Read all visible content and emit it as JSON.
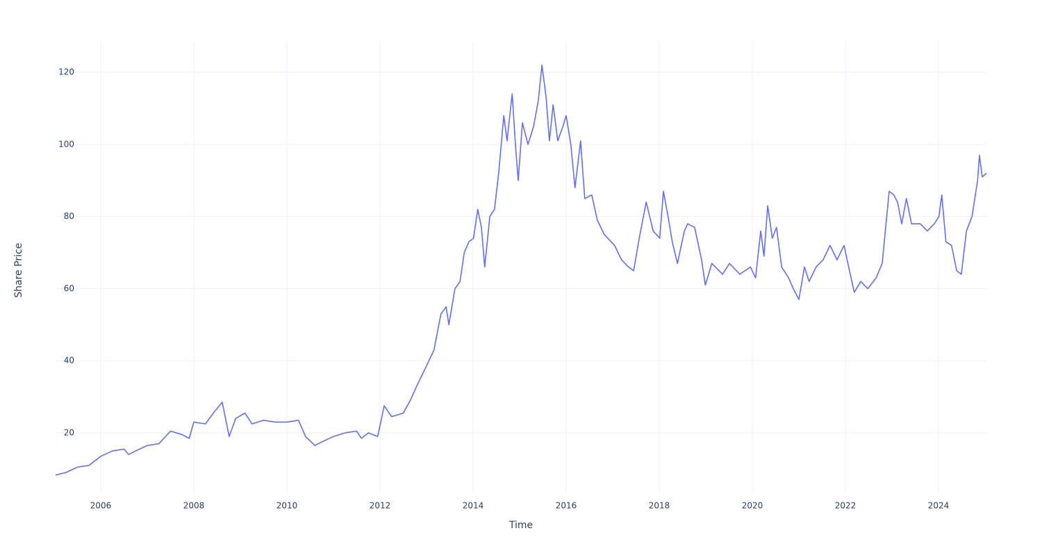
{
  "chart_data": {
    "type": "line",
    "x_label": "Time",
    "y_label": "Share Price",
    "color": "#636efa",
    "grid": true,
    "xlim": [
      2005.03,
      2025.03
    ],
    "ylim": [
      3.2,
      128.5
    ],
    "xticks": [
      2006,
      2008,
      2010,
      2012,
      2014,
      2016,
      2018,
      2020,
      2022,
      2024
    ],
    "yticks": [
      20,
      40,
      60,
      80,
      100,
      120
    ],
    "x": [
      2005.03,
      2005.25,
      2005.5,
      2005.75,
      2006.0,
      2006.25,
      2006.5,
      2006.6,
      2006.75,
      2007.0,
      2007.25,
      2007.5,
      2007.75,
      2007.9,
      2008.0,
      2008.25,
      2008.45,
      2008.61,
      2008.76,
      2008.9,
      2009.1,
      2009.25,
      2009.5,
      2009.75,
      2010.0,
      2010.25,
      2010.4,
      2010.6,
      2010.75,
      2011.0,
      2011.25,
      2011.5,
      2011.6,
      2011.75,
      2011.95,
      2012.09,
      2012.25,
      2012.5,
      2012.65,
      2012.79,
      2012.94,
      2013.16,
      2013.31,
      2013.42,
      2013.48,
      2013.61,
      2013.72,
      2013.81,
      2013.91,
      2014.01,
      2014.1,
      2014.18,
      2014.25,
      2014.36,
      2014.46,
      2014.55,
      2014.66,
      2014.73,
      2014.84,
      2014.91,
      2014.97,
      2015.06,
      2015.18,
      2015.3,
      2015.4,
      2015.48,
      2015.57,
      2015.64,
      2015.72,
      2015.82,
      2015.93,
      2016.0,
      2016.1,
      2016.19,
      2016.31,
      2016.4,
      2016.55,
      2016.67,
      2016.82,
      2017.04,
      2017.19,
      2017.34,
      2017.45,
      2017.57,
      2017.72,
      2017.87,
      2018.01,
      2018.09,
      2018.19,
      2018.28,
      2018.39,
      2018.54,
      2018.61,
      2018.76,
      2018.91,
      2018.99,
      2019.13,
      2019.36,
      2019.51,
      2019.73,
      2019.96,
      2020.07,
      2020.18,
      2020.25,
      2020.33,
      2020.43,
      2020.52,
      2020.63,
      2020.78,
      2020.88,
      2021.0,
      2021.12,
      2021.22,
      2021.37,
      2021.52,
      2021.67,
      2021.82,
      2021.97,
      2022.07,
      2022.19,
      2022.33,
      2022.48,
      2022.66,
      2022.79,
      2022.94,
      2023.04,
      2023.12,
      2023.21,
      2023.31,
      2023.42,
      2023.61,
      2023.76,
      2023.91,
      2024.01,
      2024.07,
      2024.16,
      2024.28,
      2024.39,
      2024.49,
      2024.6,
      2024.72,
      2024.84,
      2024.88,
      2024.94,
      2025.03
    ],
    "values": [
      8.3,
      9,
      10.5,
      11,
      13.5,
      15,
      15.5,
      14,
      15,
      16.5,
      17,
      20.5,
      19.5,
      18.5,
      23,
      22.5,
      26,
      28.5,
      19,
      24,
      25.5,
      22.5,
      23.5,
      23,
      23,
      23.5,
      19,
      16.5,
      17.5,
      19,
      20,
      20.5,
      18.5,
      20,
      19,
      27.5,
      24.5,
      25.5,
      29,
      33,
      37,
      43,
      53,
      55,
      50,
      60,
      62,
      70,
      73,
      74,
      82,
      77,
      66,
      80,
      82,
      92,
      108,
      101,
      114,
      100,
      90,
      106,
      100,
      105,
      112,
      122,
      113,
      101,
      111,
      101,
      105,
      108,
      100,
      88,
      101,
      85,
      86,
      79,
      75,
      72,
      68,
      66,
      65,
      74,
      84,
      76,
      74,
      87,
      80,
      73,
      67,
      76,
      78,
      77,
      68,
      61,
      67,
      64,
      67,
      64,
      66,
      63,
      76,
      69,
      83,
      74,
      77,
      66,
      63,
      60,
      57,
      66,
      62,
      66,
      68,
      72,
      68,
      72,
      66,
      59,
      62,
      60,
      63,
      67,
      87,
      86,
      84,
      78,
      85,
      78,
      78,
      76,
      78,
      80,
      86,
      73,
      72,
      65,
      64,
      76,
      80,
      90,
      97,
      91,
      92
    ]
  }
}
